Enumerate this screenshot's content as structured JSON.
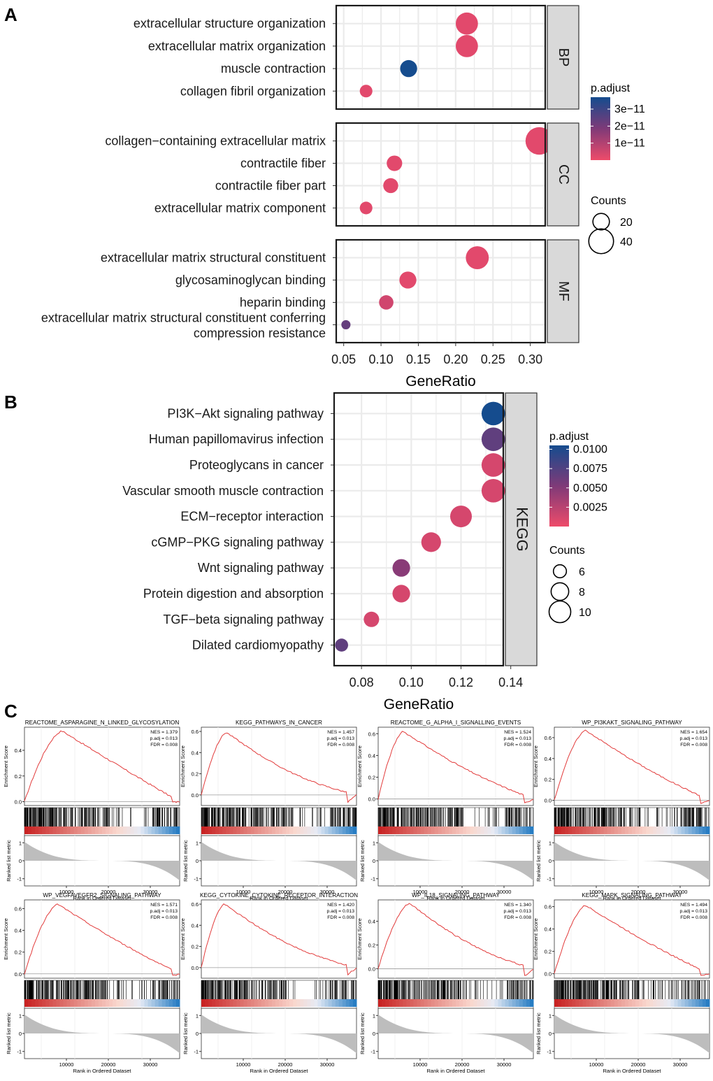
{
  "figure": {
    "panel_labels": [
      "A",
      "B",
      "C"
    ]
  },
  "chart_data": [
    {
      "id": "A",
      "type": "scatter",
      "subtype": "dot-plot",
      "xlabel": "GeneRatio",
      "xlim": [
        0.04,
        0.32
      ],
      "xticks": [
        0.05,
        0.1,
        0.15,
        0.2,
        0.25,
        0.3
      ],
      "xtick_labels": [
        "0.05",
        "0.10",
        "0.15",
        "0.20",
        "0.25",
        "0.30"
      ],
      "facets": [
        {
          "name": "BP",
          "terms": [
            {
              "label": [
                "extracellular structure organization"
              ],
              "ratio": 0.215,
              "count": 33,
              "padj": 2e-12
            },
            {
              "label": [
                "extracellular matrix organization"
              ],
              "ratio": 0.215,
              "count": 33,
              "padj": 2e-12
            },
            {
              "label": [
                "muscle contraction"
              ],
              "ratio": 0.137,
              "count": 21,
              "padj": 3.7e-11
            },
            {
              "label": [
                "collagen fibril organization"
              ],
              "ratio": 0.08,
              "count": 13,
              "padj": 2e-12
            }
          ]
        },
        {
          "name": "CC",
          "terms": [
            {
              "label": [
                "collagen−containing extracellular matrix"
              ],
              "ratio": 0.312,
              "count": 48,
              "padj": 2e-12
            },
            {
              "label": [
                "contractile fiber"
              ],
              "ratio": 0.118,
              "count": 18,
              "padj": 2e-12
            },
            {
              "label": [
                "contractile fiber part"
              ],
              "ratio": 0.113,
              "count": 17,
              "padj": 2e-12
            },
            {
              "label": [
                "extracellular matrix component"
              ],
              "ratio": 0.08,
              "count": 13,
              "padj": 2e-12
            }
          ]
        },
        {
          "name": "MF",
          "terms": [
            {
              "label": [
                "extracellular matrix structural constituent"
              ],
              "ratio": 0.229,
              "count": 35,
              "padj": 2e-12
            },
            {
              "label": [
                "glycosaminoglycan binding"
              ],
              "ratio": 0.136,
              "count": 21,
              "padj": 2e-12
            },
            {
              "label": [
                "heparin binding"
              ],
              "ratio": 0.107,
              "count": 16,
              "padj": 5e-12
            },
            {
              "label": [
                "extracellular matrix structural constituent conferring",
                "compression resistance"
              ],
              "ratio": 0.053,
              "count": 8,
              "padj": 2.3e-11
            }
          ]
        }
      ],
      "color_legend": {
        "title": "p.adjust",
        "min": 0,
        "max": 3.7e-11,
        "ticks": [
          1e-11,
          2e-11,
          3e-11
        ],
        "tick_labels": [
          "1e−11",
          "2e−11",
          "3e−11"
        ],
        "low_color": "#ee4b6a",
        "high_color": "#154c8e"
      },
      "size_legend": {
        "title": "Counts",
        "values": [
          20,
          40
        ],
        "labels": [
          "20",
          "40"
        ]
      }
    },
    {
      "id": "B",
      "type": "scatter",
      "subtype": "dot-plot",
      "xlabel": "GeneRatio",
      "xlim": [
        0.069,
        0.137
      ],
      "xticks": [
        0.08,
        0.1,
        0.12,
        0.14
      ],
      "xtick_labels": [
        "0.08",
        "0.10",
        "0.12",
        "0.14"
      ],
      "facets": [
        {
          "name": "KEGG",
          "terms": [
            {
              "label": [
                "PI3K−Akt signaling pathway"
              ],
              "ratio": 0.133,
              "count": 11,
              "padj": 0.0105
            },
            {
              "label": [
                "Human papillomavirus infection"
              ],
              "ratio": 0.133,
              "count": 11,
              "padj": 0.0068
            },
            {
              "label": [
                "Proteoglycans in cancer"
              ],
              "ratio": 0.133,
              "count": 11,
              "padj": 0.0012
            },
            {
              "label": [
                "Vascular smooth muscle contraction"
              ],
              "ratio": 0.133,
              "count": 11,
              "padj": 0.0012
            },
            {
              "label": [
                "ECM−receptor interaction"
              ],
              "ratio": 0.12,
              "count": 10,
              "padj": 0.0012
            },
            {
              "label": [
                "cGMP−PKG signaling pathway"
              ],
              "ratio": 0.108,
              "count": 9,
              "padj": 0.0012
            },
            {
              "label": [
                "Wnt signaling pathway"
              ],
              "ratio": 0.096,
              "count": 8,
              "padj": 0.0048
            },
            {
              "label": [
                "Protein digestion and absorption"
              ],
              "ratio": 0.096,
              "count": 8,
              "padj": 0.0012
            },
            {
              "label": [
                "TGF−beta signaling pathway"
              ],
              "ratio": 0.084,
              "count": 7,
              "padj": 0.0012
            },
            {
              "label": [
                "Dilated cardiomyopathy"
              ],
              "ratio": 0.072,
              "count": 6,
              "padj": 0.0068
            }
          ]
        }
      ],
      "color_legend": {
        "title": "p.adjust",
        "min": 0,
        "max": 0.0105,
        "ticks": [
          0.0025,
          0.005,
          0.0075,
          0.01
        ],
        "tick_labels": [
          "0.0025",
          "0.0050",
          "0.0075",
          "0.0100"
        ],
        "low_color": "#ee4b6a",
        "high_color": "#154c8e"
      },
      "size_legend": {
        "title": "Counts",
        "values": [
          6,
          8,
          10
        ],
        "labels": [
          "6",
          "8",
          "10"
        ]
      }
    },
    {
      "id": "C",
      "type": "line",
      "subtype": "gsea-enrichment",
      "xlabel": "Rank in Ordered Dataset",
      "ylabel_top": "Enrichment Score",
      "ylabel_bottom": "Ranked list metric",
      "x_range": [
        0,
        37000
      ],
      "xticks": [
        10000,
        20000,
        30000
      ],
      "xtick_labels": [
        "10000",
        "20000",
        "30000"
      ],
      "metric_ticks": [
        1,
        0,
        -1
      ],
      "metric_tick_labels": [
        "1",
        "0",
        "-1"
      ],
      "plots": [
        {
          "title": "REACTOME_ASPARAGINE_N_LINKED_GLYCOSYLATION",
          "nes": "NES = 1.379",
          "padj": "p.adj = 0.013",
          "fdr": "FDR = 0.008",
          "ylim": [
            -0.03,
            0.58
          ],
          "yticks": [
            0,
            0.2,
            0.4
          ],
          "ytick_labels": [
            "0.0",
            "0.2",
            "0.4"
          ],
          "peak_rank": 9000,
          "peak_es": 0.55,
          "end_es": 0.0,
          "min_es": -0.005
        },
        {
          "title": "KEGG_PATHWAYS_IN_CANCER",
          "nes": "NES = 1.457",
          "padj": "p.adj = 0.013",
          "fdr": "FDR = 0.008",
          "ylim": [
            -0.1,
            0.64
          ],
          "yticks": [
            0,
            0.2,
            0.4,
            0.6
          ],
          "ytick_labels": [
            "0.0",
            "0.2",
            "0.4",
            "0.6"
          ],
          "peak_rank": 6000,
          "peak_es": 0.59,
          "end_es": 0.0,
          "min_es": -0.07
        },
        {
          "title": "REACTOME_G_ALPHA_I_SIGNALLING_EVENTS",
          "nes": "NES = 1.524",
          "padj": "p.adj = 0.013",
          "fdr": "FDR = 0.008",
          "ylim": [
            -0.06,
            0.66
          ],
          "yticks": [
            0,
            0.2,
            0.4,
            0.6
          ],
          "ytick_labels": [
            "0.0",
            "0.2",
            "0.4",
            "0.6"
          ],
          "peak_rank": 6000,
          "peak_es": 0.62,
          "end_es": 0.0,
          "min_es": -0.04
        },
        {
          "title": "WP_PI3KAKT_SIGNALING_PATHWAY",
          "nes": "NES = 1.654",
          "padj": "p.adj = 0.013",
          "fdr": "FDR = 0.008",
          "ylim": [
            -0.05,
            0.7
          ],
          "yticks": [
            0,
            0.2,
            0.4,
            0.6
          ],
          "ytick_labels": [
            "0.0",
            "0.2",
            "0.4",
            "0.6"
          ],
          "peak_rank": 7500,
          "peak_es": 0.67,
          "end_es": 0.0,
          "min_es": -0.03
        },
        {
          "title": "WP_VEGFAVEGFR2_SIGNALING_PATHWAY",
          "nes": "NES = 1.571",
          "padj": "p.adj = 0.013",
          "fdr": "FDR = 0.008",
          "ylim": [
            -0.04,
            0.68
          ],
          "yticks": [
            0,
            0.2,
            0.4,
            0.6
          ],
          "ytick_labels": [
            "0.0",
            "0.2",
            "0.4",
            "0.6"
          ],
          "peak_rank": 8000,
          "peak_es": 0.64,
          "end_es": 0.0,
          "min_es": -0.02
        },
        {
          "title": "KEGG_CYTOKINE_CYTOKINE_RECEPTOR_INTERACTION",
          "nes": "NES = 1.420",
          "padj": "p.adj = 0.013",
          "fdr": "FDR = 0.008",
          "ylim": [
            -0.1,
            0.64
          ],
          "yticks": [
            0,
            0.2,
            0.4,
            0.6
          ],
          "ytick_labels": [
            "0.0",
            "0.2",
            "0.4",
            "0.6"
          ],
          "peak_rank": 5500,
          "peak_es": 0.6,
          "end_es": 0.0,
          "min_es": -0.07
        },
        {
          "title": "WP_IL18_SIGNALING_PATHWAY",
          "nes": "NES = 1.340",
          "padj": "p.adj = 0.013",
          "fdr": "FDR = 0.008",
          "ylim": [
            -0.08,
            0.58
          ],
          "yticks": [
            0,
            0.2,
            0.4
          ],
          "ytick_labels": [
            "0.0",
            "0.2",
            "0.4"
          ],
          "peak_rank": 7500,
          "peak_es": 0.55,
          "end_es": 0.0,
          "min_es": -0.06
        },
        {
          "title": "KEGG_MAPK_SIGNALING_PATHWAY",
          "nes": "NES = 1.494",
          "padj": "p.adj = 0.013",
          "fdr": "FDR = 0.008",
          "ylim": [
            -0.04,
            0.66
          ],
          "yticks": [
            0,
            0.2,
            0.4,
            0.6
          ],
          "ytick_labels": [
            "0.0",
            "0.2",
            "0.4",
            "0.6"
          ],
          "peak_rank": 7500,
          "peak_es": 0.61,
          "end_es": 0.0,
          "min_es": -0.02
        }
      ]
    }
  ]
}
